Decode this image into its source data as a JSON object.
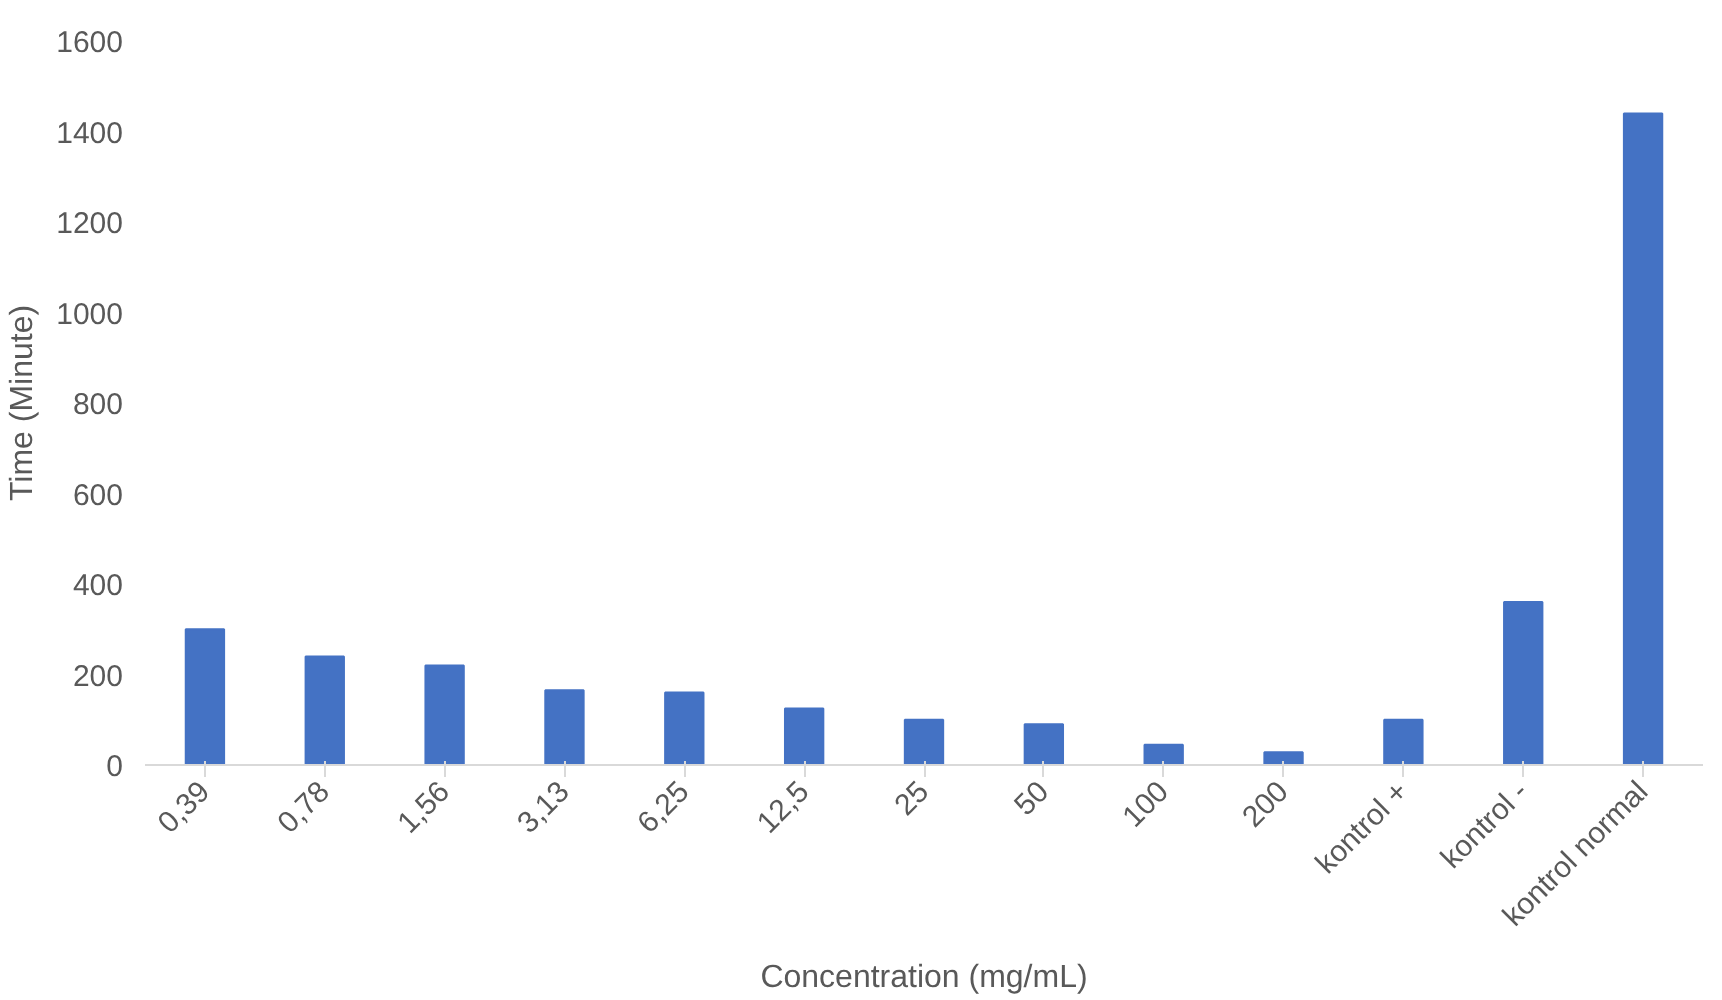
{
  "chart_data": {
    "type": "bar",
    "xlabel": "Concentration (mg/mL)",
    "ylabel": "Time (Minute)",
    "categories": [
      "0,39",
      "0,78",
      "1,56",
      "3,13",
      "6,25",
      "12,5",
      "25",
      "50",
      "100",
      "200",
      "kontrol +",
      "kontrol -",
      "kontrol normal"
    ],
    "values": [
      300,
      240,
      220,
      165,
      160,
      125,
      100,
      90,
      45,
      28,
      100,
      360,
      1440
    ],
    "color": "#4472c4",
    "ylim": [
      0,
      1600
    ],
    "yticks": [
      0,
      200,
      400,
      600,
      800,
      1000,
      1200,
      1400,
      1600
    ],
    "grid": false
  }
}
